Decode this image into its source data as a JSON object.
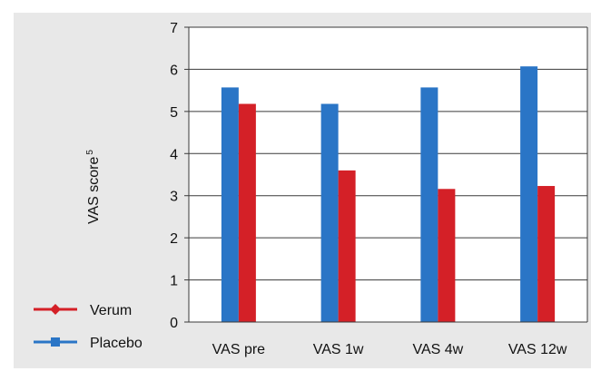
{
  "chart_data": {
    "type": "bar",
    "title": "",
    "xlabel": "",
    "ylabel": "VAS score",
    "ylabel_superscript": "5",
    "categories": [
      "VAS pre",
      "VAS 1w",
      "VAS 4w",
      "VAS 12w"
    ],
    "series": [
      {
        "name": "Placebo",
        "color": "#2a75c6",
        "values": [
          5.57,
          5.18,
          5.57,
          6.07
        ]
      },
      {
        "name": "Verum",
        "color": "#d42027",
        "values": [
          5.18,
          3.6,
          3.16,
          3.23
        ]
      }
    ],
    "yticks": [
      "0",
      "1",
      "2",
      "3",
      "4",
      "5",
      "6",
      "7"
    ],
    "ylim": [
      0,
      7
    ],
    "grid": true,
    "legend_position": "bottom-left",
    "legend_order": [
      "Verum",
      "Placebo"
    ]
  }
}
